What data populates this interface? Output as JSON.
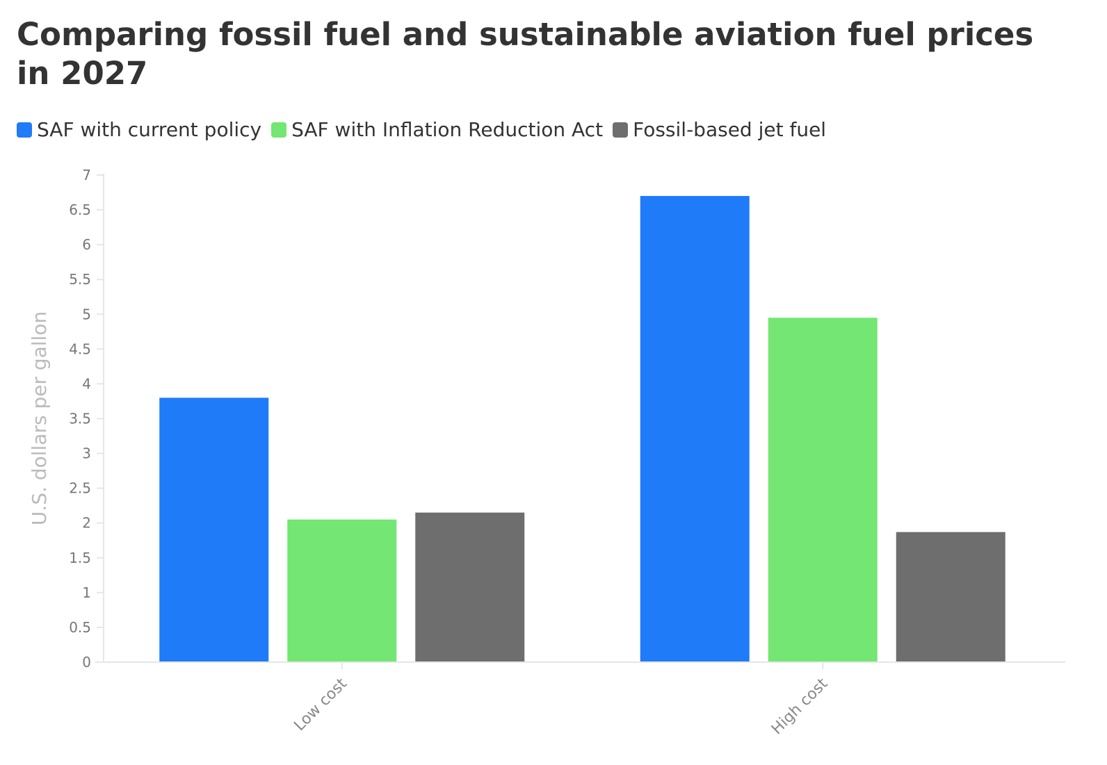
{
  "chart_data": {
    "type": "bar",
    "title": "Comparing fossil fuel and sustainable aviation fuel prices in 2027",
    "ylabel": "U.S. dollars per gallon",
    "xlabel": "",
    "categories": [
      "Low cost",
      "High cost"
    ],
    "ylim": [
      0,
      7
    ],
    "yticks": [
      "0",
      "0.5",
      "1",
      "1.5",
      "2",
      "2.5",
      "3",
      "3.5",
      "4",
      "4.5",
      "5",
      "5.5",
      "6",
      "6.5",
      "7"
    ],
    "legend_position": "top-left",
    "grid": false,
    "series": [
      {
        "name": "SAF with current policy",
        "color": "#1f7bf8",
        "values": [
          3.8,
          6.7
        ]
      },
      {
        "name": "SAF with Inflation Reduction Act",
        "color": "#73e673",
        "values": [
          2.05,
          4.95
        ]
      },
      {
        "name": "Fossil-based jet fuel",
        "color": "#6e6e6e",
        "values": [
          2.15,
          1.87
        ]
      }
    ]
  }
}
